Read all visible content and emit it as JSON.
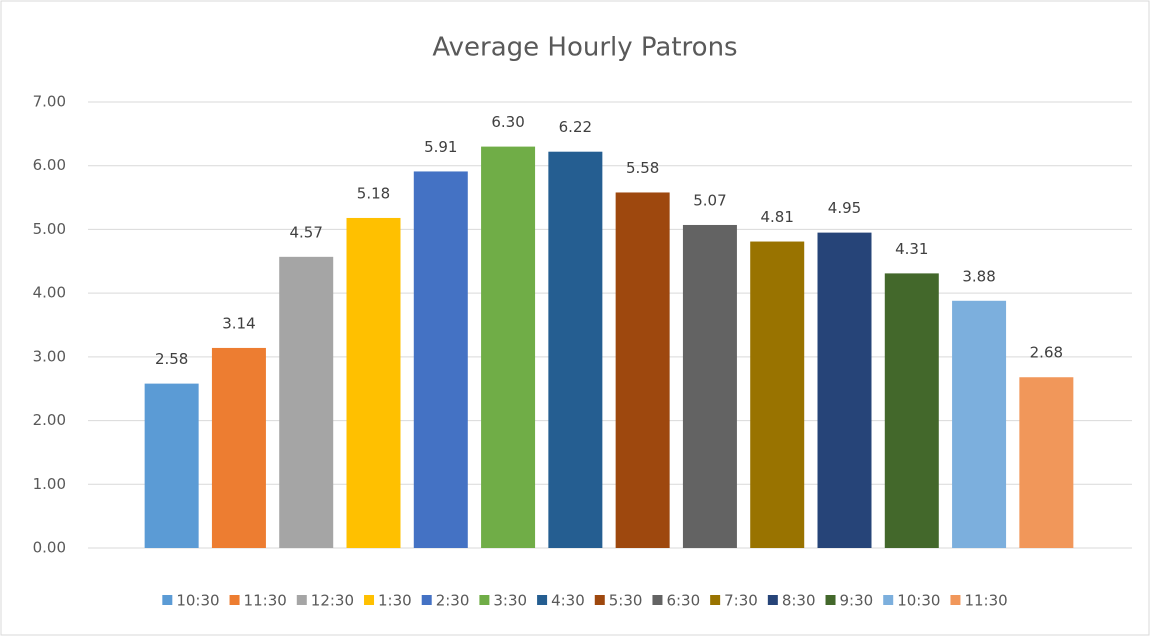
{
  "chart_data": {
    "type": "bar",
    "title": "Average Hourly Patrons",
    "categories": [
      "10:30",
      "11:30",
      "12:30",
      "1:30",
      "2:30",
      "3:30",
      "4:30",
      "5:30",
      "6:30",
      "7:30",
      "8:30",
      "9:30",
      "10:30",
      "11:30"
    ],
    "values": [
      2.58,
      3.14,
      4.57,
      5.18,
      5.91,
      6.3,
      6.22,
      5.58,
      5.07,
      4.81,
      4.95,
      4.31,
      3.88,
      2.68
    ],
    "value_labels": [
      "2.58",
      "3.14",
      "4.57",
      "5.18",
      "5.91",
      "6.30",
      "6.22",
      "5.58",
      "5.07",
      "4.81",
      "4.95",
      "4.31",
      "3.88",
      "2.68"
    ],
    "colors": [
      "#5b9bd5",
      "#ed7d31",
      "#a5a5a5",
      "#ffc000",
      "#4472c4",
      "#70ad47",
      "#255e91",
      "#9e480e",
      "#636363",
      "#997300",
      "#264478",
      "#43682b",
      "#7cafdd",
      "#f1975a"
    ],
    "ylim": [
      0,
      7
    ],
    "yticks": [
      {
        "value": 0,
        "label": "0.00"
      },
      {
        "value": 1,
        "label": "1.00"
      },
      {
        "value": 2,
        "label": "2.00"
      },
      {
        "value": 3,
        "label": "3.00"
      },
      {
        "value": 4,
        "label": "4.00"
      },
      {
        "value": 5,
        "label": "5.00"
      },
      {
        "value": 6,
        "label": "6.00"
      },
      {
        "value": 7,
        "label": "7.00"
      }
    ],
    "grid": true,
    "legend": "bottom"
  }
}
